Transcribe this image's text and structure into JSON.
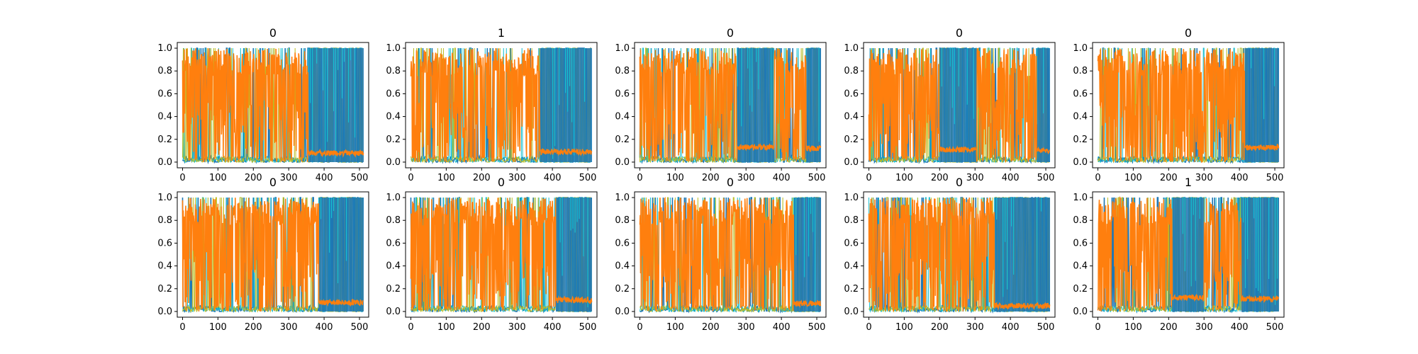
{
  "figure": {
    "rows": 2,
    "cols": 5
  },
  "colors": {
    "frame": "#000000",
    "background": "#ffffff",
    "series_palette": [
      "#1f77b4",
      "#17becf",
      "#bcbd22",
      "#2ca02c",
      "#9467bd",
      "#e377c2",
      "#8c564b",
      "#d62728",
      "#7f7f7f"
    ],
    "highlight_series": "#ff7f0e"
  },
  "chart_data": [
    {
      "type": "line",
      "title": "0",
      "xlim": [
        -15,
        526
      ],
      "ylim": [
        -0.05,
        1.05
      ],
      "xticks": [
        0,
        100,
        200,
        300,
        400,
        500
      ],
      "yticks": [
        0.0,
        0.2,
        0.4,
        0.6,
        0.8,
        1.0
      ],
      "xticklabels": [
        "0",
        "100",
        "200",
        "300",
        "400",
        "500"
      ],
      "yticklabels": [
        "0.0",
        "0.2",
        "0.4",
        "0.6",
        "0.8",
        "1.0"
      ],
      "n_points": 512,
      "regimes": [
        {
          "x": [
            0,
            355
          ],
          "state": "orange_dominant"
        },
        {
          "x": [
            355,
            512
          ],
          "state": "blue_dominant",
          "orange_level": 0.08
        }
      ]
    },
    {
      "type": "line",
      "title": "1",
      "xlim": [
        -15,
        526
      ],
      "ylim": [
        -0.05,
        1.05
      ],
      "xticks": [
        0,
        100,
        200,
        300,
        400,
        500
      ],
      "yticks": [
        0.0,
        0.2,
        0.4,
        0.6,
        0.8,
        1.0
      ],
      "xticklabels": [
        "0",
        "100",
        "200",
        "300",
        "400",
        "500"
      ],
      "yticklabels": [
        "0.0",
        "0.2",
        "0.4",
        "0.6",
        "0.8",
        "1.0"
      ],
      "n_points": 512,
      "regimes": [
        {
          "x": [
            0,
            365
          ],
          "state": "orange_dominant"
        },
        {
          "x": [
            365,
            512
          ],
          "state": "blue_dominant",
          "orange_level": 0.09
        }
      ]
    },
    {
      "type": "line",
      "title": "0",
      "xlim": [
        -15,
        526
      ],
      "ylim": [
        -0.05,
        1.05
      ],
      "xticks": [
        0,
        100,
        200,
        300,
        400,
        500
      ],
      "yticks": [
        0.0,
        0.2,
        0.4,
        0.6,
        0.8,
        1.0
      ],
      "xticklabels": [
        "0",
        "100",
        "200",
        "300",
        "400",
        "500"
      ],
      "yticklabels": [
        "0.0",
        "0.2",
        "0.4",
        "0.6",
        "0.8",
        "1.0"
      ],
      "n_points": 512,
      "regimes": [
        {
          "x": [
            0,
            275
          ],
          "state": "orange_dominant"
        },
        {
          "x": [
            275,
            380
          ],
          "state": "blue_dominant",
          "orange_level": 0.13
        },
        {
          "x": [
            380,
            470
          ],
          "state": "orange_dominant"
        },
        {
          "x": [
            470,
            512
          ],
          "state": "blue_dominant",
          "orange_level": 0.12
        }
      ]
    },
    {
      "type": "line",
      "title": "0",
      "xlim": [
        -15,
        526
      ],
      "ylim": [
        -0.05,
        1.05
      ],
      "xticks": [
        0,
        100,
        200,
        300,
        400,
        500
      ],
      "yticks": [
        0.0,
        0.2,
        0.4,
        0.6,
        0.8,
        1.0
      ],
      "xticklabels": [
        "0",
        "100",
        "200",
        "300",
        "400",
        "500"
      ],
      "yticklabels": [
        "0.0",
        "0.2",
        "0.4",
        "0.6",
        "0.8",
        "1.0"
      ],
      "n_points": 512,
      "regimes": [
        {
          "x": [
            0,
            200
          ],
          "state": "orange_dominant"
        },
        {
          "x": [
            200,
            305
          ],
          "state": "blue_dominant",
          "orange_level": 0.11
        },
        {
          "x": [
            305,
            475
          ],
          "state": "orange_dominant"
        },
        {
          "x": [
            475,
            512
          ],
          "state": "blue_dominant",
          "orange_level": 0.1
        }
      ]
    },
    {
      "type": "line",
      "title": "0",
      "xlim": [
        -15,
        526
      ],
      "ylim": [
        -0.05,
        1.05
      ],
      "xticks": [
        0,
        100,
        200,
        300,
        400,
        500
      ],
      "yticks": [
        0.0,
        0.2,
        0.4,
        0.6,
        0.8,
        1.0
      ],
      "xticklabels": [
        "0",
        "100",
        "200",
        "300",
        "400",
        "500"
      ],
      "yticklabels": [
        "0.0",
        "0.2",
        "0.4",
        "0.6",
        "0.8",
        "1.0"
      ],
      "n_points": 512,
      "regimes": [
        {
          "x": [
            0,
            415
          ],
          "state": "orange_dominant"
        },
        {
          "x": [
            415,
            512
          ],
          "state": "blue_dominant",
          "orange_level": 0.13
        }
      ]
    },
    {
      "type": "line",
      "title": "0",
      "xlim": [
        -15,
        526
      ],
      "ylim": [
        -0.05,
        1.05
      ],
      "xticks": [
        0,
        100,
        200,
        300,
        400,
        500
      ],
      "yticks": [
        0.0,
        0.2,
        0.4,
        0.6,
        0.8,
        1.0
      ],
      "xticklabels": [
        "0",
        "100",
        "200",
        "300",
        "400",
        "500"
      ],
      "yticklabels": [
        "0.0",
        "0.2",
        "0.4",
        "0.6",
        "0.8",
        "1.0"
      ],
      "n_points": 512,
      "regimes": [
        {
          "x": [
            0,
            385
          ],
          "state": "orange_dominant"
        },
        {
          "x": [
            385,
            512
          ],
          "state": "blue_dominant",
          "orange_level": 0.08
        }
      ]
    },
    {
      "type": "line",
      "title": "0",
      "xlim": [
        -15,
        526
      ],
      "ylim": [
        -0.05,
        1.05
      ],
      "xticks": [
        0,
        100,
        200,
        300,
        400,
        500
      ],
      "yticks": [
        0.0,
        0.2,
        0.4,
        0.6,
        0.8,
        1.0
      ],
      "xticklabels": [
        "0",
        "100",
        "200",
        "300",
        "400",
        "500"
      ],
      "yticklabels": [
        "0.0",
        "0.2",
        "0.4",
        "0.6",
        "0.8",
        "1.0"
      ],
      "n_points": 512,
      "regimes": [
        {
          "x": [
            0,
            410
          ],
          "state": "orange_dominant"
        },
        {
          "x": [
            410,
            512
          ],
          "state": "blue_dominant",
          "orange_level": 0.1
        }
      ]
    },
    {
      "type": "line",
      "title": "0",
      "xlim": [
        -15,
        526
      ],
      "ylim": [
        -0.05,
        1.05
      ],
      "xticks": [
        0,
        100,
        200,
        300,
        400,
        500
      ],
      "yticks": [
        0.0,
        0.2,
        0.4,
        0.6,
        0.8,
        1.0
      ],
      "xticklabels": [
        "0",
        "100",
        "200",
        "300",
        "400",
        "500"
      ],
      "yticklabels": [
        "0.0",
        "0.2",
        "0.4",
        "0.6",
        "0.8",
        "1.0"
      ],
      "n_points": 512,
      "regimes": [
        {
          "x": [
            0,
            435
          ],
          "state": "orange_dominant"
        },
        {
          "x": [
            435,
            512
          ],
          "state": "blue_dominant",
          "orange_level": 0.07
        }
      ]
    },
    {
      "type": "line",
      "title": "0",
      "xlim": [
        -15,
        526
      ],
      "ylim": [
        -0.05,
        1.05
      ],
      "xticks": [
        0,
        100,
        200,
        300,
        400,
        500
      ],
      "yticks": [
        0.0,
        0.2,
        0.4,
        0.6,
        0.8,
        1.0
      ],
      "xticklabels": [
        "0",
        "100",
        "200",
        "300",
        "400",
        "500"
      ],
      "yticklabels": [
        "0.0",
        "0.2",
        "0.4",
        "0.6",
        "0.8",
        "1.0"
      ],
      "n_points": 512,
      "regimes": [
        {
          "x": [
            0,
            355
          ],
          "state": "orange_dominant"
        },
        {
          "x": [
            355,
            512
          ],
          "state": "blue_dominant",
          "orange_level": 0.05
        }
      ]
    },
    {
      "type": "line",
      "title": "1",
      "xlim": [
        -15,
        526
      ],
      "ylim": [
        -0.05,
        1.05
      ],
      "xticks": [
        0,
        100,
        200,
        300,
        400,
        500
      ],
      "yticks": [
        0.0,
        0.2,
        0.4,
        0.6,
        0.8,
        1.0
      ],
      "xticklabels": [
        "0",
        "100",
        "200",
        "300",
        "400",
        "500"
      ],
      "yticklabels": [
        "0.0",
        "0.2",
        "0.4",
        "0.6",
        "0.8",
        "1.0"
      ],
      "n_points": 512,
      "regimes": [
        {
          "x": [
            0,
            210
          ],
          "state": "orange_dominant"
        },
        {
          "x": [
            210,
            300
          ],
          "state": "blue_dominant",
          "orange_level": 0.12
        },
        {
          "x": [
            300,
            405
          ],
          "state": "orange_dominant"
        },
        {
          "x": [
            405,
            512
          ],
          "state": "blue_dominant",
          "orange_level": 0.11
        }
      ]
    }
  ]
}
